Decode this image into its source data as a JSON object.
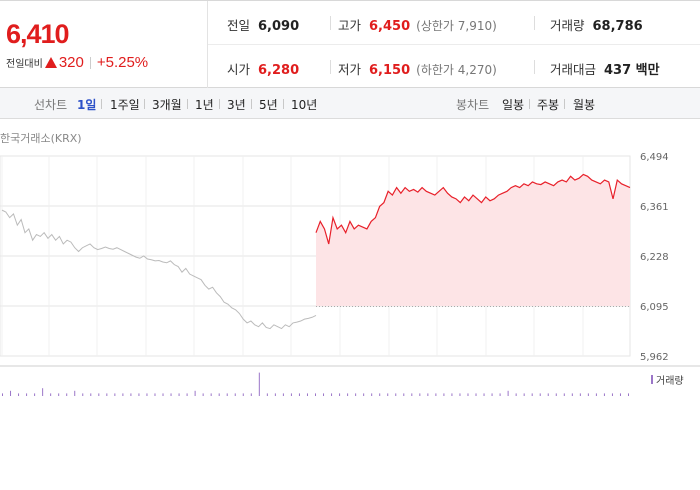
{
  "quote": {
    "price": "6,410",
    "change_label": "전일대비",
    "change_value": "320",
    "change_percent": "+5.25%",
    "direction_icon": "up-triangle-icon",
    "prev_close": {
      "label": "전일",
      "value": "6,090"
    },
    "high": {
      "label": "고가",
      "value": "6,450",
      "extra": "(상한가 7,910)"
    },
    "volume": {
      "label": "거래량",
      "value": "68,786"
    },
    "open": {
      "label": "시가",
      "value": "6,280"
    },
    "low": {
      "label": "저가",
      "value": "6,150",
      "extra": "(하한가 4,270)"
    },
    "trade_value": {
      "label": "거래대금",
      "value": "437 백만"
    }
  },
  "tabs": {
    "line_label": "선차트",
    "line_periods": [
      "1일",
      "1주일",
      "3개월",
      "1년",
      "3년",
      "5년",
      "10년"
    ],
    "active_period": "1일",
    "candle_label": "봉차트",
    "candle_periods": [
      "일봉",
      "주봉",
      "월봉"
    ]
  },
  "chart": {
    "source": "한국거래소(KRX)",
    "volume_legend": "거래량",
    "colors": {
      "up": "#e8202a",
      "up_fill": "#fde4e6",
      "previous_day": "#bbbbbb",
      "grid": "#e6e6e6",
      "volume": "#9b76c8"
    }
  },
  "chart_data": {
    "type": "line",
    "title": "",
    "y_ticks": [
      5962,
      6095,
      6228,
      6361,
      6494
    ],
    "y_tick_labels": [
      "5,962",
      "6,095",
      "6,228",
      "6,361",
      "6,494"
    ],
    "ylim": [
      5962,
      6494
    ],
    "reference_line": 6095,
    "grid": true,
    "series": [
      {
        "values": [
          6350,
          6345,
          6330,
          6340,
          6310,
          6325,
          6290,
          6300,
          6270,
          6285,
          6280,
          6290,
          6275,
          6285,
          6270,
          6280,
          6260,
          6270,
          6265,
          6250,
          6240,
          6250,
          6255,
          6260,
          6250,
          6245,
          6248,
          6252,
          6248,
          6246,
          6250,
          6245,
          6240,
          6235,
          6230,
          6225,
          6222,
          6228,
          6220,
          6218,
          6215,
          6216,
          6212,
          6210,
          6215,
          6205,
          6200,
          6185,
          6195,
          6180,
          6175,
          6170,
          6165,
          6150,
          6140,
          6145,
          6130,
          6120,
          6105,
          6100,
          6090,
          6085,
          6075,
          6060,
          6050,
          6055,
          6045,
          6040,
          6050,
          6038,
          6035,
          6045,
          6040,
          6035,
          6045,
          6040,
          6050,
          6052,
          6055,
          6060,
          6062,
          6065,
          6070
        ]
      },
      {
        "values": [
          6290,
          6320,
          6300,
          6260,
          6330,
          6300,
          6310,
          6290,
          6320,
          6300,
          6310,
          6305,
          6300,
          6320,
          6330,
          6360,
          6370,
          6400,
          6390,
          6410,
          6395,
          6410,
          6400,
          6405,
          6398,
          6410,
          6400,
          6395,
          6390,
          6400,
          6410,
          6395,
          6385,
          6380,
          6370,
          6385,
          6375,
          6390,
          6380,
          6370,
          6385,
          6375,
          6380,
          6390,
          6395,
          6400,
          6410,
          6415,
          6410,
          6420,
          6415,
          6425,
          6420,
          6418,
          6425,
          6420,
          6415,
          6425,
          6430,
          6425,
          6440,
          6430,
          6435,
          6445,
          6440,
          6430,
          6425,
          6420,
          6430,
          6425,
          6380,
          6430,
          6420,
          6415,
          6410
        ]
      }
    ],
    "volume_series": [
      {
        "values": [
          1,
          2,
          1,
          1,
          1,
          3,
          1,
          1,
          1,
          2,
          1,
          1,
          1,
          1,
          1,
          1,
          1,
          1,
          1,
          1,
          1,
          1,
          1,
          1,
          2,
          1,
          1,
          1,
          1,
          1,
          1,
          1,
          9,
          1,
          1,
          1,
          1,
          1,
          1,
          1,
          1,
          1,
          1,
          1,
          1,
          1,
          1,
          1,
          1,
          1,
          1,
          1,
          1,
          1,
          1,
          1,
          1,
          1,
          1,
          1,
          1,
          1,
          1,
          2,
          1,
          1,
          1,
          1,
          1,
          1,
          1,
          1,
          1,
          1,
          1,
          1,
          1,
          1,
          1
        ]
      }
    ]
  }
}
